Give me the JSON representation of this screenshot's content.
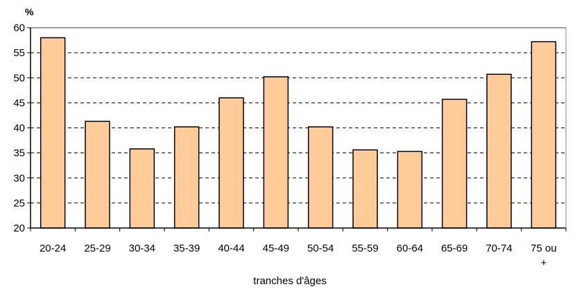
{
  "chart_data": {
    "type": "bar",
    "unit_label": "%",
    "xlabel": "tranches d'âges",
    "ylabel": "",
    "categories": [
      "20-24",
      "25-29",
      "30-34",
      "35-39",
      "40-44",
      "45-49",
      "50-54",
      "55-59",
      "60-64",
      "65-69",
      "70-74",
      "75 ou +"
    ],
    "values": [
      58.0,
      41.3,
      35.8,
      40.2,
      46.0,
      50.2,
      40.2,
      35.6,
      35.3,
      45.7,
      50.7,
      57.2
    ],
    "ylim": [
      20,
      60
    ],
    "yticks": [
      20,
      25,
      30,
      35,
      40,
      45,
      50,
      55,
      60
    ],
    "grid": "dashed horizontal",
    "legend": "none",
    "colors": {
      "bar_fill": "#FFCC99",
      "bar_stroke": "#000000",
      "grid": "#000000",
      "plot_border": "#808080"
    }
  }
}
